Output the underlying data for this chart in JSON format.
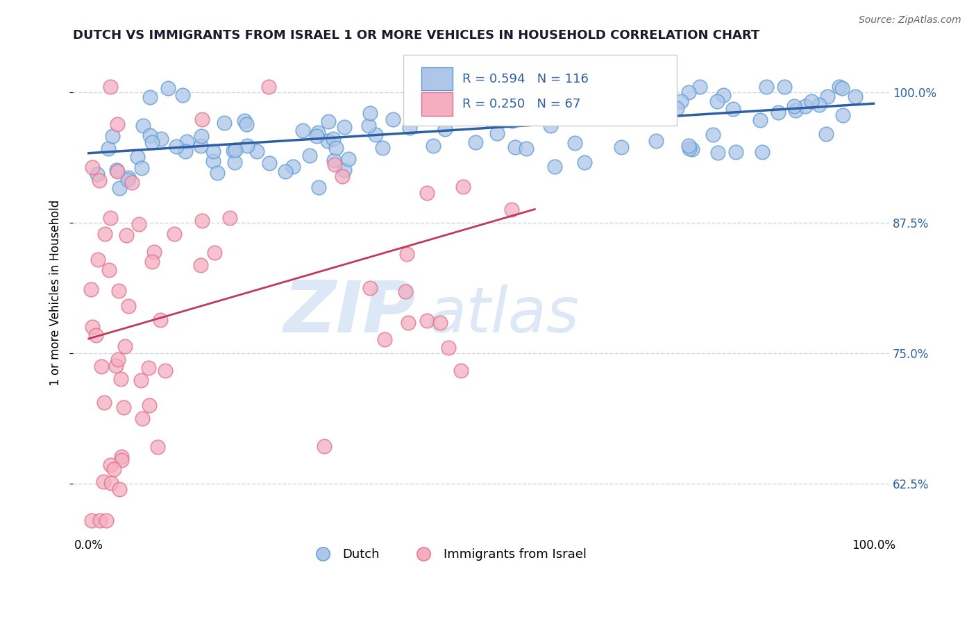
{
  "title": "DUTCH VS IMMIGRANTS FROM ISRAEL 1 OR MORE VEHICLES IN HOUSEHOLD CORRELATION CHART",
  "source_text": "Source: ZipAtlas.com",
  "ylabel": "1 or more Vehicles in Household",
  "xlim": [
    -0.02,
    1.02
  ],
  "ylim": [
    0.575,
    1.04
  ],
  "yticks": [
    0.625,
    0.75,
    0.875,
    1.0
  ],
  "ytick_labels": [
    "62.5%",
    "75.0%",
    "87.5%",
    "100.0%"
  ],
  "legend_labels": [
    "Dutch",
    "Immigrants from Israel"
  ],
  "dutch_color": "#aec6e8",
  "israel_color": "#f4aec0",
  "dutch_edge": "#5b9bd5",
  "israel_edge": "#e07090",
  "dutch_line_color": "#2e5fa3",
  "israel_line_color": "#c0385a",
  "R_dutch": 0.594,
  "N_dutch": 116,
  "R_israel": 0.25,
  "N_israel": 67,
  "watermark_zip": "ZIP",
  "watermark_atlas": "atlas",
  "watermark_color": "#dce8f5",
  "title_fontsize": 13,
  "tick_label_color": "#2e5fa3"
}
